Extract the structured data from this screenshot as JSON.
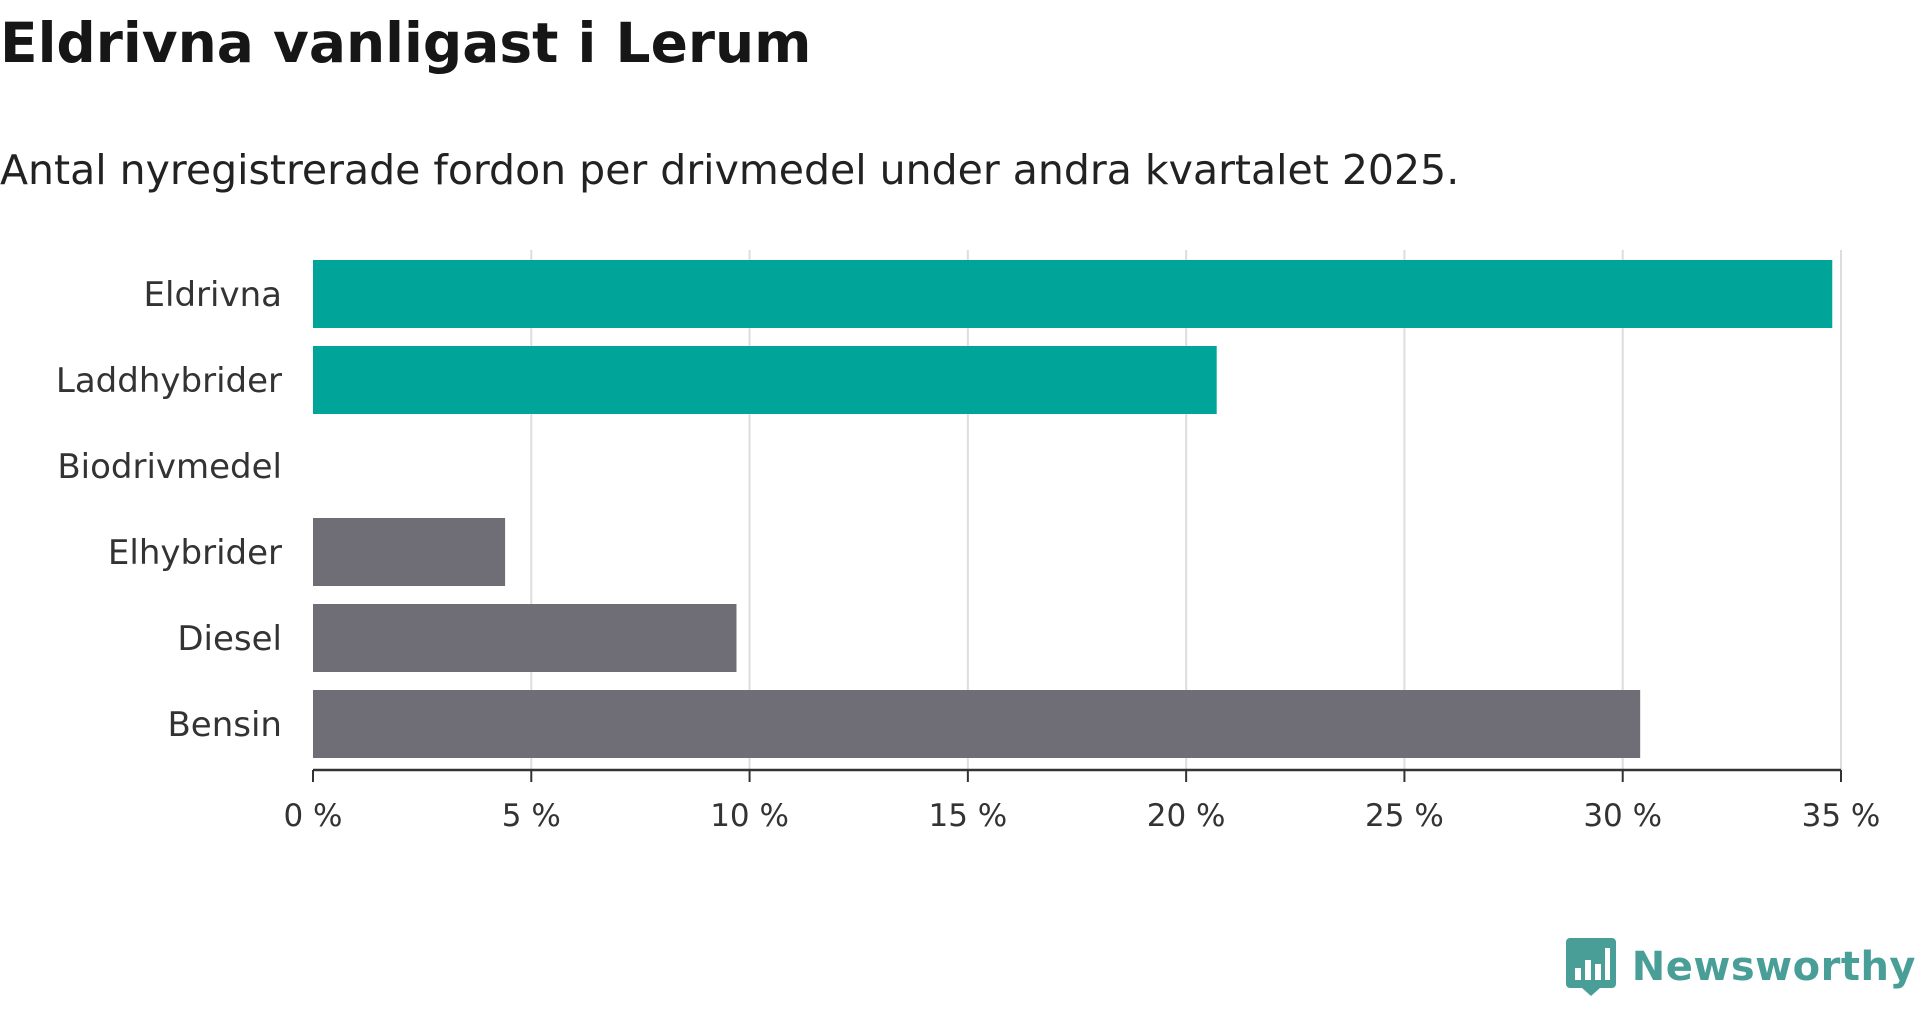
{
  "chart_data": {
    "type": "bar",
    "orientation": "horizontal",
    "title": "Eldrivna vanligast i Lerum",
    "subtitle": "Antal nyregistrerade fordon per drivmedel under andra kvartalet 2025.",
    "categories": [
      "Eldrivna",
      "Laddhybrider",
      "Biodrivmedel",
      "Elhybrider",
      "Diesel",
      "Bensin"
    ],
    "values": [
      34.8,
      20.7,
      0,
      4.4,
      9.7,
      30.4
    ],
    "bar_colors": [
      "#00a499",
      "#00a499",
      "#00a499",
      "#6f6e76",
      "#6f6e76",
      "#6f6e76"
    ],
    "xlim": [
      0,
      35
    ],
    "xticks": [
      0,
      5,
      10,
      15,
      20,
      25,
      30,
      35
    ],
    "xtick_labels": [
      "0 %",
      "5 %",
      "10 %",
      "15 %",
      "20 %",
      "25 %",
      "30 %",
      "35 %"
    ],
    "xlabel": "",
    "ylabel": "",
    "grid": "vertical",
    "legend": "none"
  },
  "brand": {
    "name": "Newsworthy",
    "color": "#4a9e98",
    "icon": "newsworthy-logo-icon"
  }
}
